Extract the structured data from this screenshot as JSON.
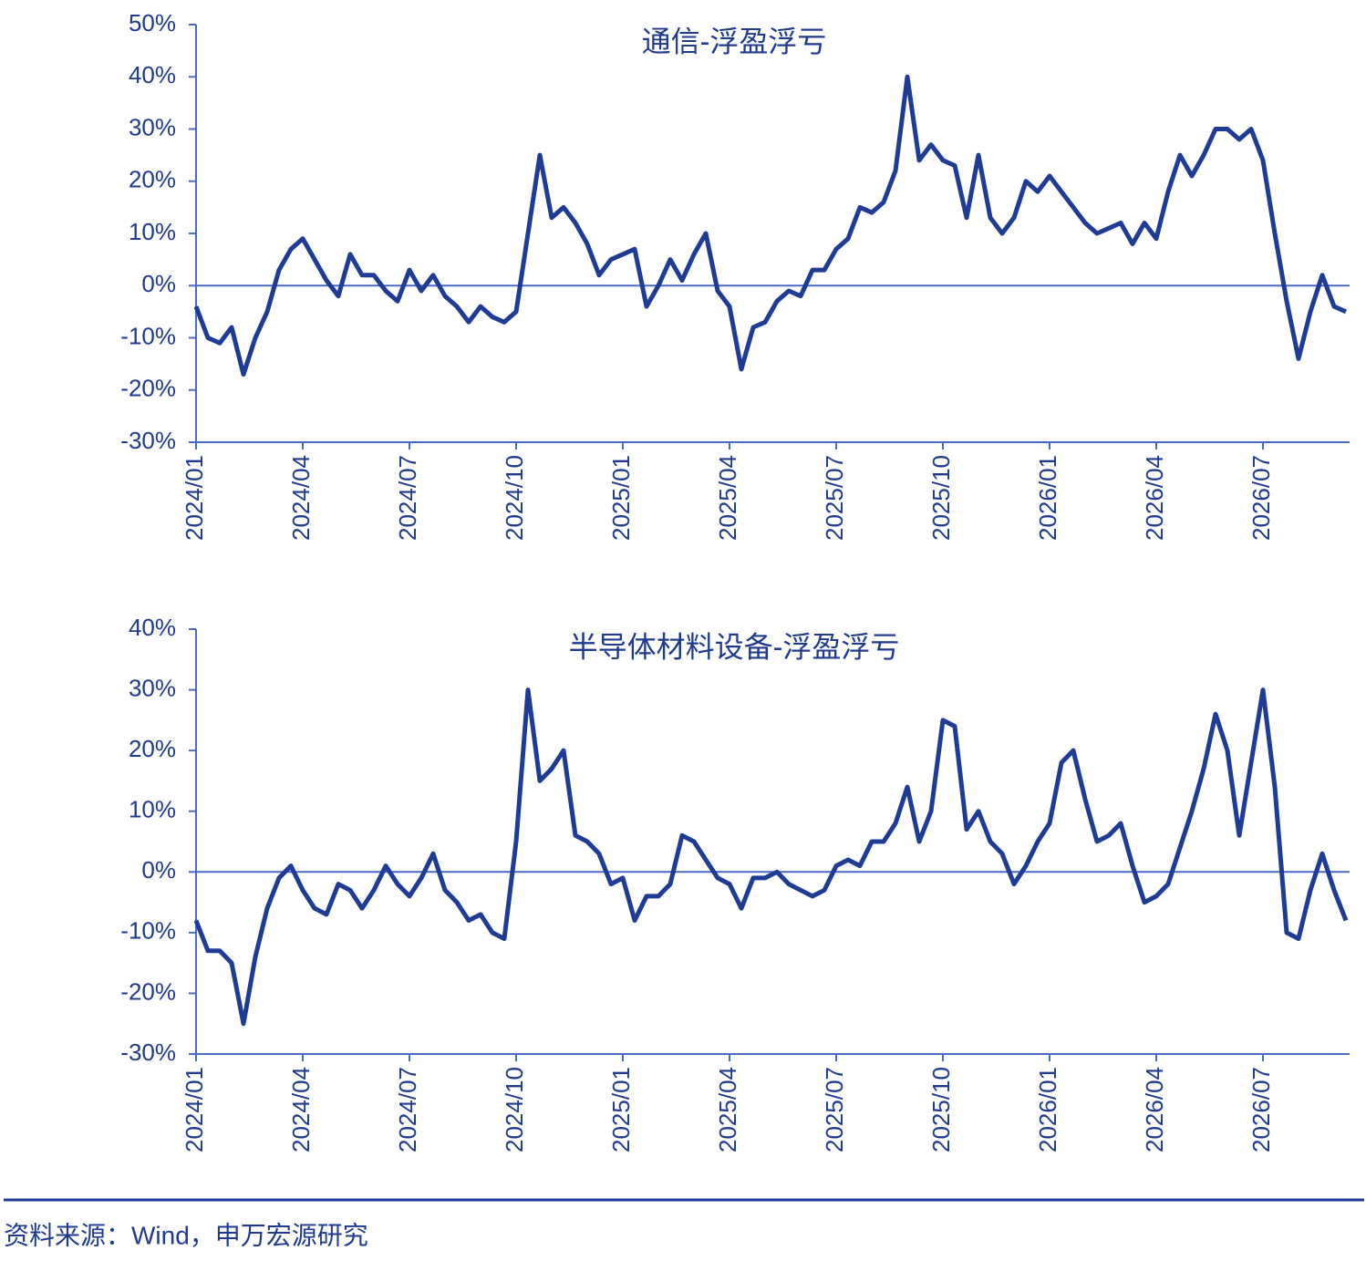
{
  "chart_data": [
    {
      "type": "line",
      "title": "通信-浮盈浮亏",
      "color": "#1e3c96",
      "categories": [
        "2024/01",
        null,
        null,
        null,
        null,
        null,
        null,
        null,
        null,
        "2024/04",
        null,
        null,
        null,
        null,
        null,
        null,
        null,
        null,
        "2024/07",
        null,
        null,
        null,
        null,
        null,
        null,
        null,
        null,
        "2024/10",
        null,
        null,
        null,
        null,
        null,
        null,
        null,
        null,
        "2025/01",
        null,
        null,
        null,
        null,
        null,
        null,
        null,
        null,
        "2025/04",
        null,
        null,
        null,
        null,
        null,
        null,
        null,
        null,
        "2025/07",
        null,
        null,
        null,
        null,
        null,
        null,
        null,
        null,
        "2025/10",
        null,
        null,
        null,
        null,
        null,
        null,
        null,
        null,
        "2026/01",
        null,
        null,
        null,
        null,
        null,
        null,
        null,
        null,
        "2026/04",
        null,
        null,
        null,
        null,
        null,
        null,
        null,
        null,
        "2026/07",
        null,
        null,
        null,
        null,
        null,
        null,
        null
      ],
      "values": [
        -4,
        -10,
        -11,
        -8,
        -17,
        -10,
        -5,
        3,
        7,
        9,
        5,
        1,
        -2,
        6,
        2,
        2,
        -1,
        -3,
        3,
        -1,
        2,
        -2,
        -4,
        -7,
        -4,
        -6,
        -7,
        -5,
        10,
        25,
        13,
        15,
        12,
        8,
        2,
        5,
        6,
        7,
        -4,
        0,
        5,
        1,
        6,
        10,
        -1,
        -4,
        -16,
        -8,
        -7,
        -3,
        -1,
        -2,
        3,
        3,
        7,
        9,
        15,
        14,
        16,
        22,
        40,
        24,
        27,
        24,
        23,
        13,
        25,
        13,
        10,
        13,
        20,
        18,
        21,
        18,
        15,
        12,
        10,
        11,
        12,
        8,
        12,
        9,
        18,
        25,
        21,
        25,
        30,
        30,
        28,
        30,
        24,
        10,
        -3,
        -14,
        -5,
        2,
        -4,
        -5
      ],
      "ylim": [
        -30,
        50
      ],
      "yticks": [
        {
          "value": -30,
          "label": "-30%"
        },
        {
          "value": -20,
          "label": "-20%"
        },
        {
          "value": -10,
          "label": "-10%"
        },
        {
          "value": 0,
          "label": "0%"
        },
        {
          "value": 10,
          "label": "10%"
        },
        {
          "value": 20,
          "label": "20%"
        },
        {
          "value": 30,
          "label": "30%"
        },
        {
          "value": 40,
          "label": "40%"
        },
        {
          "value": 50,
          "label": "50%"
        }
      ]
    },
    {
      "type": "line",
      "title": "半导体材料设备-浮盈浮亏",
      "color": "#1e3c96",
      "categories": [
        "2024/01",
        null,
        null,
        null,
        null,
        null,
        null,
        null,
        null,
        "2024/04",
        null,
        null,
        null,
        null,
        null,
        null,
        null,
        null,
        "2024/07",
        null,
        null,
        null,
        null,
        null,
        null,
        null,
        null,
        "2024/10",
        null,
        null,
        null,
        null,
        null,
        null,
        null,
        null,
        "2025/01",
        null,
        null,
        null,
        null,
        null,
        null,
        null,
        null,
        "2025/04",
        null,
        null,
        null,
        null,
        null,
        null,
        null,
        null,
        "2025/07",
        null,
        null,
        null,
        null,
        null,
        null,
        null,
        null,
        "2025/10",
        null,
        null,
        null,
        null,
        null,
        null,
        null,
        null,
        "2026/01",
        null,
        null,
        null,
        null,
        null,
        null,
        null,
        null,
        "2026/04",
        null,
        null,
        null,
        null,
        null,
        null,
        null,
        null,
        "2026/07",
        null,
        null,
        null,
        null,
        null,
        null,
        null
      ],
      "values": [
        -8,
        -13,
        -13,
        -15,
        -25,
        -14,
        -6,
        -1,
        1,
        -3,
        -6,
        -7,
        -2,
        -3,
        -6,
        -3,
        1,
        -2,
        -4,
        -1,
        3,
        -3,
        -5,
        -8,
        -7,
        -10,
        -11,
        5,
        30,
        15,
        17,
        20,
        6,
        5,
        3,
        -2,
        -1,
        -8,
        -4,
        -4,
        -2,
        6,
        5,
        2,
        -1,
        -2,
        -6,
        -1,
        -1,
        0,
        -2,
        -3,
        -4,
        -3,
        1,
        2,
        1,
        5,
        5,
        8,
        14,
        5,
        10,
        25,
        24,
        7,
        10,
        5,
        3,
        -2,
        1,
        5,
        8,
        18,
        20,
        12,
        5,
        6,
        8,
        1,
        -5,
        -4,
        -2,
        4,
        10,
        17,
        26,
        20,
        6,
        18,
        30,
        14,
        -10,
        -11,
        -3,
        3,
        -3,
        -8
      ],
      "ylim": [
        -30,
        40
      ],
      "yticks": [
        {
          "value": -30,
          "label": "-30%"
        },
        {
          "value": -20,
          "label": "-20%"
        },
        {
          "value": -10,
          "label": "-10%"
        },
        {
          "value": 0,
          "label": "0%"
        },
        {
          "value": 10,
          "label": "10%"
        },
        {
          "value": 20,
          "label": "20%"
        },
        {
          "value": 30,
          "label": "30%"
        },
        {
          "value": 40,
          "label": "40%"
        }
      ]
    }
  ],
  "source": "资料来源：Wind，申万宏源研究"
}
